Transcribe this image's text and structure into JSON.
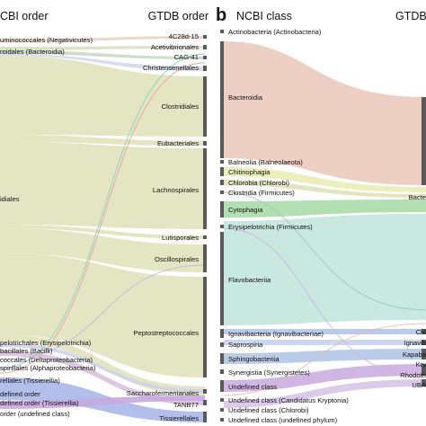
{
  "colors": {
    "clostridia_band": "#dfe2b8",
    "bacteroidia_band": "#ebcabc",
    "flavobacteriia_band": "#c3e5dc",
    "cytophaga_band": "#a9dba8",
    "chitinophagia_band": "#e8edb4",
    "blue_band": "#a9b8e8",
    "purple_band": "#c8a9de",
    "node_bar": "#5a5a5a"
  },
  "panel_a": {
    "left_header": "CBI order",
    "right_header": "GTDB order",
    "left_nodes": [
      "uminococcales (Negativicutes)",
      "roidales (Bacteroidia)",
      "idiales",
      "pelotrichales (Erysipelotrichia)",
      "bacillales (Bacilli)",
      "coccales (Deltaproteobacteria)",
      "spirillales (Alphaproteobacteria)",
      "rellales (Tissierellia)",
      "defined order",
      "defined order (Tissierellia)",
      "order (undefined class)"
    ],
    "right_nodes": [
      "4C28d-15",
      "Acetivibrionales",
      "CAG-41",
      "Christensenellales",
      "Clostridiales",
      "Eubacteriales",
      "Lachnospirales",
      "Lutisporales",
      "Oscillospirales",
      "Peptostreptococcales",
      "Saccharofermentanales",
      "TANB77",
      "Tissierellales"
    ]
  },
  "panel_b": {
    "letter": "b",
    "left_header": "NCBI class",
    "right_header": "GTDB",
    "left_nodes": [
      "Actinobacteria (Actinobacteria)",
      "Bacteroidia",
      "Balneolia (Balneolaeota)",
      "Chitinophagia",
      "Chlorobia (Chlorobi)",
      "Clostridia (Firmicutes)",
      "Cytophagia",
      "Erysipelotrichia (Firmicutes)",
      "Flavobacteriia",
      "Ignavibacteria (Ignavibacteriae)",
      "Saprospiria",
      "Sphingobacteriia",
      "Synergistia (Synergistetes)",
      "Undefined class",
      "Undefined class (Candidatus Kryptonia)",
      "Undefined class (Chlorobi)",
      "Undefined class (undefined phylum)"
    ],
    "right_nodes": [
      "Bacte",
      "Chl",
      "Ignavib",
      "Kapaba",
      "Kry",
      "Rhodoth",
      "UBA"
    ]
  }
}
